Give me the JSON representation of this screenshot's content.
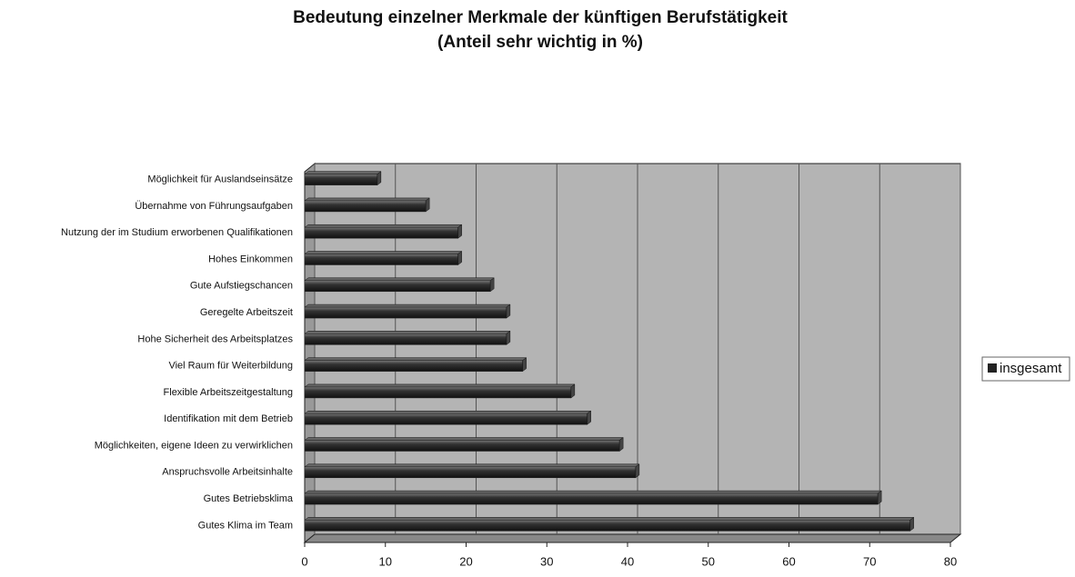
{
  "chart_data": {
    "type": "bar",
    "orientation": "horizontal",
    "title": "Bedeutung einzelner Merkmale der künftigen Berufstätigkeit",
    "subtitle": "(Anteil sehr wichtig in %)",
    "categories": [
      "Möglichkeit für Auslandseinsätze",
      "Übernahme von Führungsaufgaben",
      "Nutzung der im Studium erworbenen Qualifikationen",
      "Hohes Einkommen",
      "Gute Aufstiegschancen",
      "Geregelte Arbeitszeit",
      "Hohe Sicherheit des Arbeitsplatzes",
      "Viel Raum für  Weiterbildung",
      "Flexible Arbeitszeitgestaltung",
      "Identifikation mit dem Betrieb",
      "Möglichkeiten, eigene Ideen zu verwirklichen",
      "Anspruchsvolle Arbeitsinhalte",
      "Gutes Betriebsklima",
      "Gutes Klima im Team"
    ],
    "series": [
      {
        "name": "insgesamt",
        "color": "#222222",
        "values": [
          9,
          15,
          19,
          19,
          23,
          25,
          25,
          27,
          33,
          35,
          39,
          41,
          71,
          75
        ]
      }
    ],
    "xlim": [
      0,
      80
    ],
    "xticks": [
      0,
      10,
      20,
      30,
      40,
      50,
      60,
      70,
      80
    ],
    "grid": true,
    "legend": "right"
  }
}
